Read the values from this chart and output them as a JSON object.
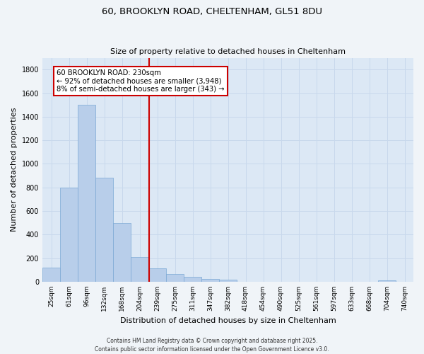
{
  "title_line1": "60, BROOKLYN ROAD, CHELTENHAM, GL51 8DU",
  "title_line2": "Size of property relative to detached houses in Cheltenham",
  "xlabel": "Distribution of detached houses by size in Cheltenham",
  "ylabel": "Number of detached properties",
  "bins": [
    "25sqm",
    "61sqm",
    "96sqm",
    "132sqm",
    "168sqm",
    "204sqm",
    "239sqm",
    "275sqm",
    "311sqm",
    "347sqm",
    "382sqm",
    "418sqm",
    "454sqm",
    "490sqm",
    "525sqm",
    "561sqm",
    "597sqm",
    "633sqm",
    "668sqm",
    "704sqm",
    "740sqm"
  ],
  "values": [
    120,
    800,
    1500,
    880,
    500,
    210,
    115,
    65,
    40,
    25,
    20,
    0,
    0,
    0,
    0,
    0,
    0,
    0,
    0,
    10,
    0
  ],
  "bar_color": "#b8ceea",
  "bar_edge_color": "#7aa8d4",
  "vline_x_index": 5.55,
  "vline_color": "#cc0000",
  "annotation_text": "60 BROOKLYN ROAD: 230sqm\n← 92% of detached houses are smaller (3,948)\n8% of semi-detached houses are larger (343) →",
  "annotation_box_facecolor": "#ffffff",
  "annotation_box_edgecolor": "#cc0000",
  "ylim": [
    0,
    1900
  ],
  "yticks": [
    0,
    200,
    400,
    600,
    800,
    1000,
    1200,
    1400,
    1600,
    1800
  ],
  "grid_color": "#c8d8ec",
  "plot_bg_color": "#dce8f5",
  "fig_bg_color": "#f0f4f8",
  "footer_line1": "Contains HM Land Registry data © Crown copyright and database right 2025.",
  "footer_line2": "Contains public sector information licensed under the Open Government Licence v3.0.",
  "title_fontsize": 9.5,
  "subtitle_fontsize": 8,
  "tick_fontsize": 6.5,
  "ylabel_fontsize": 8,
  "xlabel_fontsize": 8,
  "footer_fontsize": 5.5,
  "annot_fontsize": 7.2
}
